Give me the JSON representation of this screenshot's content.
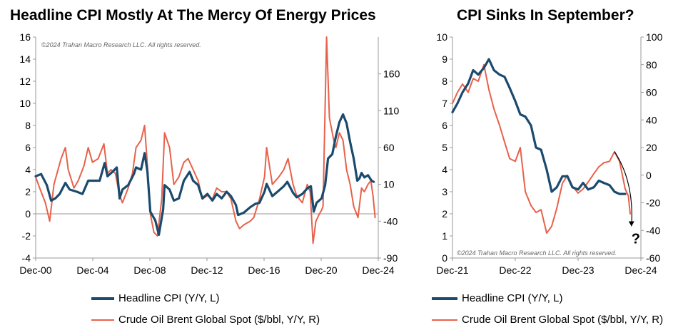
{
  "chart_data": [
    {
      "type": "line",
      "title": "Headline CPI Mostly At The Mercy Of Energy Prices",
      "copyright": "©2024 Trahan Macro Research LLC. All rights reserved.",
      "x_ticks": [
        "Dec-00",
        "Dec-04",
        "Dec-08",
        "Dec-12",
        "Dec-16",
        "Dec-20",
        "Dec-24"
      ],
      "xlim": [
        2000.92,
        2024.92
      ],
      "y_left": {
        "lim": [
          -4,
          16
        ],
        "ticks": [
          "-4",
          "-2",
          "0",
          "2",
          "4",
          "6",
          "8",
          "10",
          "12",
          "14",
          "16"
        ]
      },
      "y_right": {
        "lim": [
          -90,
          210
        ],
        "ticks": [
          "-90",
          "-40",
          "10",
          "60",
          "110",
          "160"
        ]
      },
      "grid": false,
      "series": [
        {
          "name": "Headline CPI (Y/Y, L)",
          "axis": "left",
          "color": "#1a4a6e",
          "points": [
            [
              2000.92,
              3.4
            ],
            [
              2001.3,
              3.6
            ],
            [
              2001.7,
              2.6
            ],
            [
              2002.0,
              1.2
            ],
            [
              2002.3,
              1.4
            ],
            [
              2002.6,
              1.8
            ],
            [
              2003.0,
              2.8
            ],
            [
              2003.3,
              2.2
            ],
            [
              2003.8,
              2.0
            ],
            [
              2004.2,
              1.8
            ],
            [
              2004.6,
              3.0
            ],
            [
              2005.0,
              3.0
            ],
            [
              2005.4,
              3.0
            ],
            [
              2005.75,
              4.6
            ],
            [
              2005.95,
              3.4
            ],
            [
              2006.3,
              3.8
            ],
            [
              2006.6,
              4.2
            ],
            [
              2006.8,
              1.4
            ],
            [
              2007.0,
              2.2
            ],
            [
              2007.4,
              2.6
            ],
            [
              2007.8,
              3.6
            ],
            [
              2007.95,
              4.2
            ],
            [
              2008.3,
              4.0
            ],
            [
              2008.55,
              5.5
            ],
            [
              2008.75,
              3.8
            ],
            [
              2008.95,
              0.2
            ],
            [
              2009.3,
              -0.6
            ],
            [
              2009.55,
              -1.9
            ],
            [
              2009.85,
              0.4
            ],
            [
              2009.95,
              2.6
            ],
            [
              2010.3,
              2.2
            ],
            [
              2010.6,
              1.2
            ],
            [
              2010.95,
              1.4
            ],
            [
              2011.3,
              3.0
            ],
            [
              2011.7,
              3.8
            ],
            [
              2011.95,
              3.0
            ],
            [
              2012.3,
              2.6
            ],
            [
              2012.6,
              1.4
            ],
            [
              2012.95,
              1.8
            ],
            [
              2013.3,
              1.2
            ],
            [
              2013.6,
              1.8
            ],
            [
              2013.95,
              1.4
            ],
            [
              2014.3,
              2.0
            ],
            [
              2014.6,
              1.6
            ],
            [
              2014.95,
              0.8
            ],
            [
              2015.1,
              -0.1
            ],
            [
              2015.5,
              0.1
            ],
            [
              2015.95,
              0.6
            ],
            [
              2016.3,
              0.9
            ],
            [
              2016.6,
              1.0
            ],
            [
              2016.95,
              2.0
            ],
            [
              2017.1,
              2.7
            ],
            [
              2017.5,
              1.6
            ],
            [
              2017.95,
              2.1
            ],
            [
              2018.3,
              2.5
            ],
            [
              2018.55,
              2.9
            ],
            [
              2018.95,
              1.9
            ],
            [
              2019.2,
              1.5
            ],
            [
              2019.6,
              1.8
            ],
            [
              2019.95,
              2.3
            ],
            [
              2020.2,
              2.5
            ],
            [
              2020.4,
              0.2
            ],
            [
              2020.6,
              1.0
            ],
            [
              2020.95,
              1.4
            ],
            [
              2021.2,
              2.6
            ],
            [
              2021.4,
              5.0
            ],
            [
              2021.7,
              5.4
            ],
            [
              2021.95,
              7.0
            ],
            [
              2022.2,
              8.3
            ],
            [
              2022.45,
              9.0
            ],
            [
              2022.7,
              8.2
            ],
            [
              2022.95,
              6.5
            ],
            [
              2023.2,
              5.0
            ],
            [
              2023.45,
              3.0
            ],
            [
              2023.6,
              3.2
            ],
            [
              2023.75,
              3.7
            ],
            [
              2023.95,
              3.3
            ],
            [
              2024.2,
              3.5
            ],
            [
              2024.45,
              3.0
            ],
            [
              2024.6,
              2.9
            ]
          ]
        },
        {
          "name": "Crude Oil Brent Global Spot ($/bbl, Y/Y, R)",
          "axis": "right",
          "color": "#e8614a",
          "points": [
            [
              2000.92,
              20
            ],
            [
              2001.2,
              5
            ],
            [
              2001.6,
              -15
            ],
            [
              2001.9,
              -40
            ],
            [
              2002.2,
              10
            ],
            [
              2002.7,
              45
            ],
            [
              2003.0,
              60
            ],
            [
              2003.2,
              30
            ],
            [
              2003.6,
              5
            ],
            [
              2003.9,
              15
            ],
            [
              2004.3,
              35
            ],
            [
              2004.6,
              60
            ],
            [
              2004.9,
              40
            ],
            [
              2005.3,
              45
            ],
            [
              2005.7,
              65
            ],
            [
              2005.95,
              25
            ],
            [
              2006.2,
              30
            ],
            [
              2006.5,
              25
            ],
            [
              2006.8,
              -5
            ],
            [
              2007.0,
              -15
            ],
            [
              2007.4,
              5
            ],
            [
              2007.7,
              25
            ],
            [
              2007.95,
              60
            ],
            [
              2008.3,
              70
            ],
            [
              2008.55,
              90
            ],
            [
              2008.75,
              35
            ],
            [
              2008.95,
              -30
            ],
            [
              2009.2,
              -55
            ],
            [
              2009.45,
              -60
            ],
            [
              2009.75,
              -10
            ],
            [
              2009.95,
              80
            ],
            [
              2010.3,
              60
            ],
            [
              2010.6,
              10
            ],
            [
              2010.95,
              20
            ],
            [
              2011.3,
              40
            ],
            [
              2011.6,
              45
            ],
            [
              2011.95,
              30
            ],
            [
              2012.3,
              15
            ],
            [
              2012.6,
              -10
            ],
            [
              2012.95,
              -5
            ],
            [
              2013.3,
              -10
            ],
            [
              2013.6,
              5
            ],
            [
              2013.95,
              0
            ],
            [
              2014.3,
              0
            ],
            [
              2014.6,
              -10
            ],
            [
              2014.95,
              -40
            ],
            [
              2015.2,
              -50
            ],
            [
              2015.5,
              -45
            ],
            [
              2015.95,
              -40
            ],
            [
              2016.2,
              -35
            ],
            [
              2016.6,
              -10
            ],
            [
              2016.95,
              20
            ],
            [
              2017.1,
              60
            ],
            [
              2017.5,
              10
            ],
            [
              2017.95,
              20
            ],
            [
              2018.3,
              30
            ],
            [
              2018.6,
              45
            ],
            [
              2018.95,
              10
            ],
            [
              2019.2,
              -5
            ],
            [
              2019.6,
              -15
            ],
            [
              2019.95,
              10
            ],
            [
              2020.15,
              0
            ],
            [
              2020.35,
              -70
            ],
            [
              2020.55,
              -40
            ],
            [
              2020.8,
              -30
            ],
            [
              2020.95,
              -25
            ],
            [
              2021.05,
              -20
            ],
            [
              2021.3,
              210
            ],
            [
              2021.5,
              100
            ],
            [
              2021.8,
              70
            ],
            [
              2021.95,
              60
            ],
            [
              2022.2,
              80
            ],
            [
              2022.45,
              70
            ],
            [
              2022.7,
              30
            ],
            [
              2022.95,
              10
            ],
            [
              2023.2,
              -20
            ],
            [
              2023.5,
              -35
            ],
            [
              2023.75,
              5
            ],
            [
              2023.95,
              0
            ],
            [
              2024.2,
              10
            ],
            [
              2024.4,
              15
            ],
            [
              2024.55,
              -5
            ],
            [
              2024.7,
              -35
            ]
          ]
        }
      ]
    },
    {
      "type": "line",
      "title": "CPI Sinks In September?",
      "copyright": "©2024 Trahan Macro Research LLC. All rights reserved.",
      "annotation": "?",
      "x_ticks": [
        "Dec-21",
        "Dec-22",
        "Dec-23",
        "Dec-24"
      ],
      "xlim": [
        2021.92,
        2024.92
      ],
      "y_left": {
        "lim": [
          0,
          10
        ],
        "ticks": [
          "0",
          "1",
          "2",
          "3",
          "4",
          "5",
          "6",
          "7",
          "8",
          "9",
          "10"
        ]
      },
      "y_right": {
        "lim": [
          -60,
          100
        ],
        "ticks": [
          "-60",
          "-40",
          "-20",
          "0",
          "20",
          "40",
          "60",
          "80",
          "100"
        ]
      },
      "grid": false,
      "series": [
        {
          "name": "Headline CPI (Y/Y, L)",
          "axis": "left",
          "color": "#1a4a6e",
          "points": [
            [
              2021.92,
              6.6
            ],
            [
              2022.0,
              7.0
            ],
            [
              2022.08,
              7.5
            ],
            [
              2022.17,
              7.9
            ],
            [
              2022.25,
              8.5
            ],
            [
              2022.33,
              8.3
            ],
            [
              2022.42,
              8.6
            ],
            [
              2022.5,
              9.0
            ],
            [
              2022.58,
              8.5
            ],
            [
              2022.67,
              8.3
            ],
            [
              2022.75,
              8.2
            ],
            [
              2022.83,
              7.7
            ],
            [
              2022.92,
              7.1
            ],
            [
              2023.0,
              6.5
            ],
            [
              2023.08,
              6.4
            ],
            [
              2023.17,
              6.0
            ],
            [
              2023.25,
              5.0
            ],
            [
              2023.33,
              4.9
            ],
            [
              2023.42,
              4.0
            ],
            [
              2023.5,
              3.0
            ],
            [
              2023.58,
              3.2
            ],
            [
              2023.67,
              3.7
            ],
            [
              2023.75,
              3.7
            ],
            [
              2023.83,
              3.2
            ],
            [
              2023.92,
              3.1
            ],
            [
              2024.0,
              3.4
            ],
            [
              2024.08,
              3.1
            ],
            [
              2024.17,
              3.2
            ],
            [
              2024.25,
              3.5
            ],
            [
              2024.33,
              3.4
            ],
            [
              2024.42,
              3.3
            ],
            [
              2024.5,
              3.0
            ],
            [
              2024.58,
              2.9
            ],
            [
              2024.67,
              2.9
            ]
          ]
        },
        {
          "name": "Crude Oil Brent Global Spot ($/bbl, Y/Y, R)",
          "axis": "right",
          "color": "#e8614a",
          "points": [
            [
              2021.92,
              52
            ],
            [
              2022.0,
              60
            ],
            [
              2022.08,
              66
            ],
            [
              2022.17,
              60
            ],
            [
              2022.25,
              70
            ],
            [
              2022.33,
              68
            ],
            [
              2022.42,
              80
            ],
            [
              2022.5,
              62
            ],
            [
              2022.58,
              48
            ],
            [
              2022.67,
              36
            ],
            [
              2022.75,
              24
            ],
            [
              2022.83,
              12
            ],
            [
              2022.92,
              10
            ],
            [
              2023.0,
              20
            ],
            [
              2023.08,
              -12
            ],
            [
              2023.17,
              -22
            ],
            [
              2023.25,
              -27
            ],
            [
              2023.33,
              -25
            ],
            [
              2023.42,
              -42
            ],
            [
              2023.5,
              -37
            ],
            [
              2023.58,
              -24
            ],
            [
              2023.67,
              -6
            ],
            [
              2023.75,
              0
            ],
            [
              2023.83,
              -8
            ],
            [
              2023.92,
              -13
            ],
            [
              2024.0,
              -10
            ],
            [
              2024.08,
              -5
            ],
            [
              2024.17,
              1
            ],
            [
              2024.25,
              6
            ],
            [
              2024.33,
              9
            ],
            [
              2024.42,
              10
            ],
            [
              2024.5,
              17
            ],
            [
              2024.58,
              10
            ],
            [
              2024.67,
              -10
            ],
            [
              2024.72,
              -15
            ],
            [
              2024.75,
              -28
            ]
          ]
        }
      ]
    }
  ]
}
